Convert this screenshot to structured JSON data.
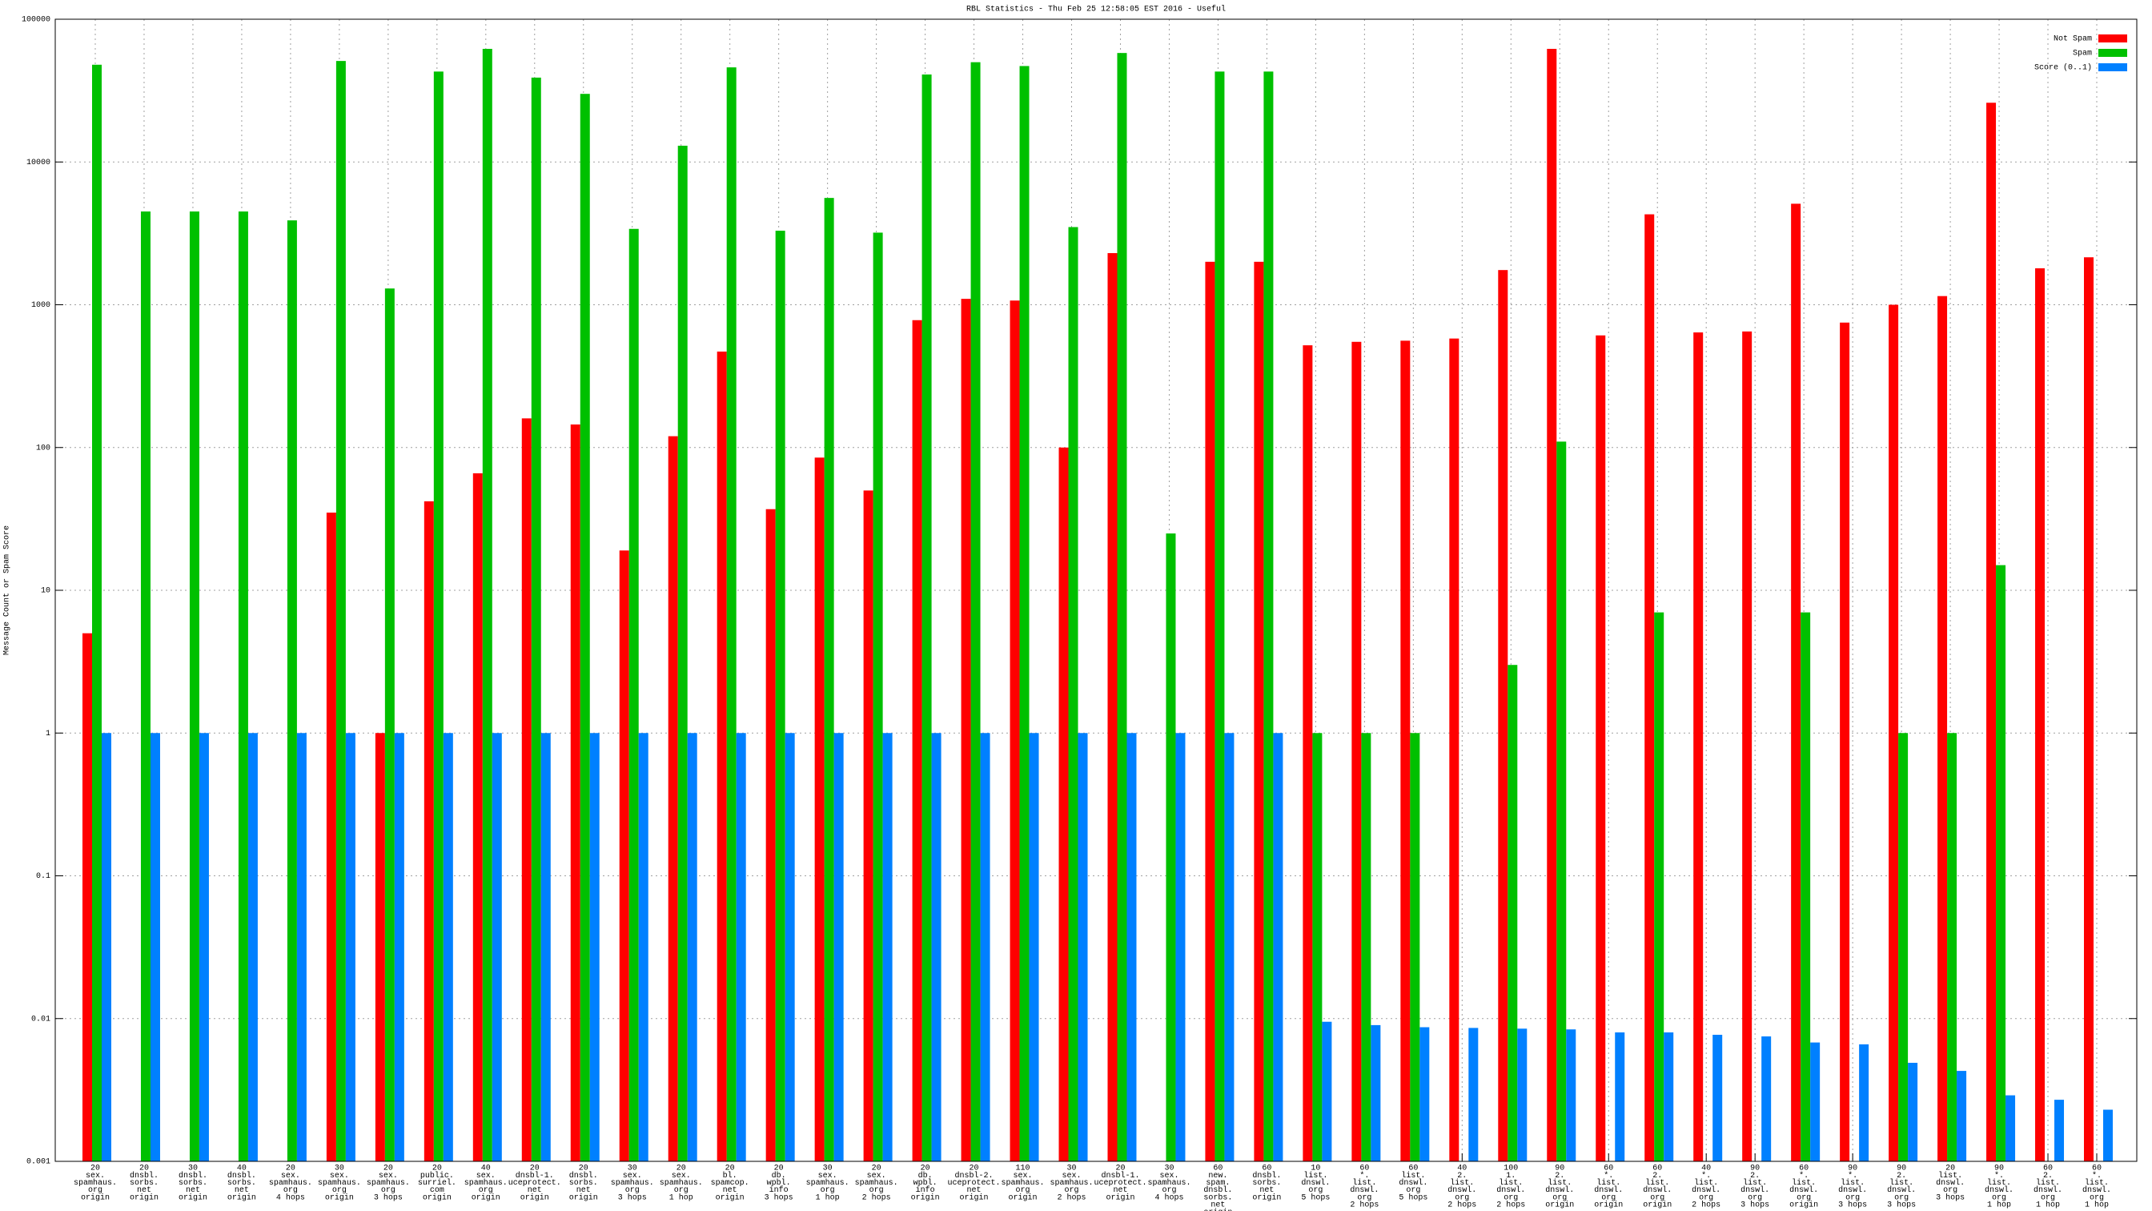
{
  "chart_data": {
    "type": "bar",
    "title": "RBL Statistics - Thu Feb 25 12:58:05 EST 2016 - Useful",
    "y_label": "Message Count or Spam Score",
    "ylog": true,
    "grid": true,
    "legend": "top-right",
    "ylim": [
      0.001,
      100000
    ],
    "yticks": [
      0.001,
      0.01,
      0.1,
      1,
      10,
      100,
      1000,
      10000,
      100000
    ],
    "categories": [
      [
        "20",
        "sex.",
        "spamhaus.",
        "org",
        "origin"
      ],
      [
        "20",
        "dnsbl.",
        "sorbs.",
        "net",
        "origin"
      ],
      [
        "30",
        "dnsbl.",
        "sorbs.",
        "net",
        "origin"
      ],
      [
        "40",
        "dnsbl.",
        "sorbs.",
        "net",
        "origin"
      ],
      [
        "20",
        "sex.",
        "spamhaus.",
        "org",
        "4 hops"
      ],
      [
        "30",
        "sex.",
        "spamhaus.",
        "org",
        "origin"
      ],
      [
        "20",
        "sex.",
        "spamhaus.",
        "org",
        "3 hops"
      ],
      [
        "20",
        "public.",
        "surriel.",
        "com",
        "origin"
      ],
      [
        "40",
        "sex.",
        "spamhaus.",
        "org",
        "origin"
      ],
      [
        "20",
        "dnsbl-1.",
        "uceprotect.",
        "net",
        "origin"
      ],
      [
        "20",
        "dnsbl.",
        "sorbs.",
        "net",
        "origin"
      ],
      [
        "30",
        "sex.",
        "spamhaus.",
        "org",
        "3 hops"
      ],
      [
        "20",
        "sex.",
        "spamhaus.",
        "org",
        "1 hop"
      ],
      [
        "20",
        "bl.",
        "spamcop.",
        "net",
        "origin"
      ],
      [
        "20",
        "db.",
        "wpbl.",
        "info",
        "3 hops"
      ],
      [
        "30",
        "sex.",
        "spamhaus.",
        "org",
        "1 hop"
      ],
      [
        "20",
        "sex.",
        "spamhaus.",
        "org",
        "2 hops"
      ],
      [
        "20",
        "db.",
        "wpbl.",
        "info",
        "origin"
      ],
      [
        "20",
        "dnsbl-2.",
        "uceprotect.",
        "net",
        "origin"
      ],
      [
        "110",
        "sex.",
        "spamhaus.",
        "org",
        "origin"
      ],
      [
        "30",
        "sex.",
        "spamhaus.",
        "org",
        "2 hops"
      ],
      [
        "20",
        "dnsbl-1.",
        "uceprotect.",
        "net",
        "origin"
      ],
      [
        "30",
        "sex.",
        "spamhaus.",
        "org",
        "4 hops"
      ],
      [
        "60",
        "new.",
        "spam.",
        "dnsbl.",
        "sorbs.",
        "net",
        "origin"
      ],
      [
        "60",
        "dnsbl.",
        "sorbs.",
        "net",
        "origin"
      ],
      [
        "10",
        "list.",
        "dnswl.",
        "org",
        "5 hops"
      ],
      [
        "60",
        "*.",
        "list.",
        "dnswl.",
        "org",
        "2 hops"
      ],
      [
        "60",
        "list.",
        "dnswl.",
        "org",
        "5 hops"
      ],
      [
        "40",
        "2.",
        "list.",
        "dnswl.",
        "org",
        "2 hops"
      ],
      [
        "100",
        "1.",
        "list.",
        "dnswl.",
        "org",
        "2 hops"
      ],
      [
        "90",
        "2.",
        "list.",
        "dnswl.",
        "org",
        "origin"
      ],
      [
        "60",
        "*.",
        "list.",
        "dnswl.",
        "org",
        "origin"
      ],
      [
        "60",
        "2.",
        "list.",
        "dnswl.",
        "org",
        "origin"
      ],
      [
        "40",
        "*.",
        "list.",
        "dnswl.",
        "org",
        "2 hops"
      ],
      [
        "90",
        "2.",
        "list.",
        "dnswl.",
        "org",
        "3 hops"
      ],
      [
        "60",
        "*.",
        "list.",
        "dnswl.",
        "org",
        "origin"
      ],
      [
        "90",
        "*.",
        "list.",
        "dnswl.",
        "org",
        "3 hops"
      ],
      [
        "90",
        "2.",
        "list.",
        "dnswl.",
        "org",
        "3 hops"
      ],
      [
        "20",
        "list.",
        "dnswl.",
        "org",
        "3 hops"
      ],
      [
        "90",
        "*.",
        "list.",
        "dnswl.",
        "org",
        "1 hop"
      ],
      [
        "60",
        "2.",
        "list.",
        "dnswl.",
        "org",
        "1 hop"
      ],
      [
        "60",
        "*.",
        "list.",
        "dnswl.",
        "org",
        "1 hop"
      ]
    ],
    "series": [
      {
        "name": "Not Spam",
        "color": "#ff0000",
        "values": [
          5,
          null,
          null,
          null,
          null,
          35,
          1,
          42,
          66,
          160,
          145,
          19,
          120,
          470,
          37,
          85,
          50,
          780,
          1100,
          1070,
          100,
          2300,
          null,
          2000,
          2000,
          520,
          550,
          560,
          580,
          1750,
          62000,
          610,
          4300,
          640,
          650,
          5100,
          750,
          1000,
          1150,
          26000,
          1800,
          2150
        ]
      },
      {
        "name": "Spam",
        "color": "#00c000",
        "values": [
          48000,
          4500,
          4500,
          4500,
          3900,
          51000,
          1300,
          43000,
          62000,
          39000,
          30000,
          3400,
          13000,
          46000,
          3300,
          5600,
          3200,
          41000,
          50000,
          47000,
          3500,
          58000,
          25,
          43000,
          43000,
          1,
          1,
          1,
          null,
          3,
          110,
          null,
          7,
          null,
          null,
          7,
          null,
          1,
          1,
          15,
          null,
          null
        ]
      },
      {
        "name": "Score (0..1)",
        "color": "#0080ff",
        "values": [
          1,
          1,
          1,
          1,
          1,
          1,
          1,
          1,
          1,
          1,
          1,
          1,
          1,
          1,
          1,
          1,
          1,
          1,
          1,
          1,
          1,
          1,
          1,
          1,
          1,
          0.0095,
          0.009,
          0.0087,
          0.0086,
          0.0085,
          0.0084,
          0.008,
          0.008,
          0.0077,
          0.0075,
          0.0068,
          0.0066,
          0.0049,
          0.0043,
          0.0029,
          0.0027,
          0.0023
        ]
      }
    ]
  }
}
